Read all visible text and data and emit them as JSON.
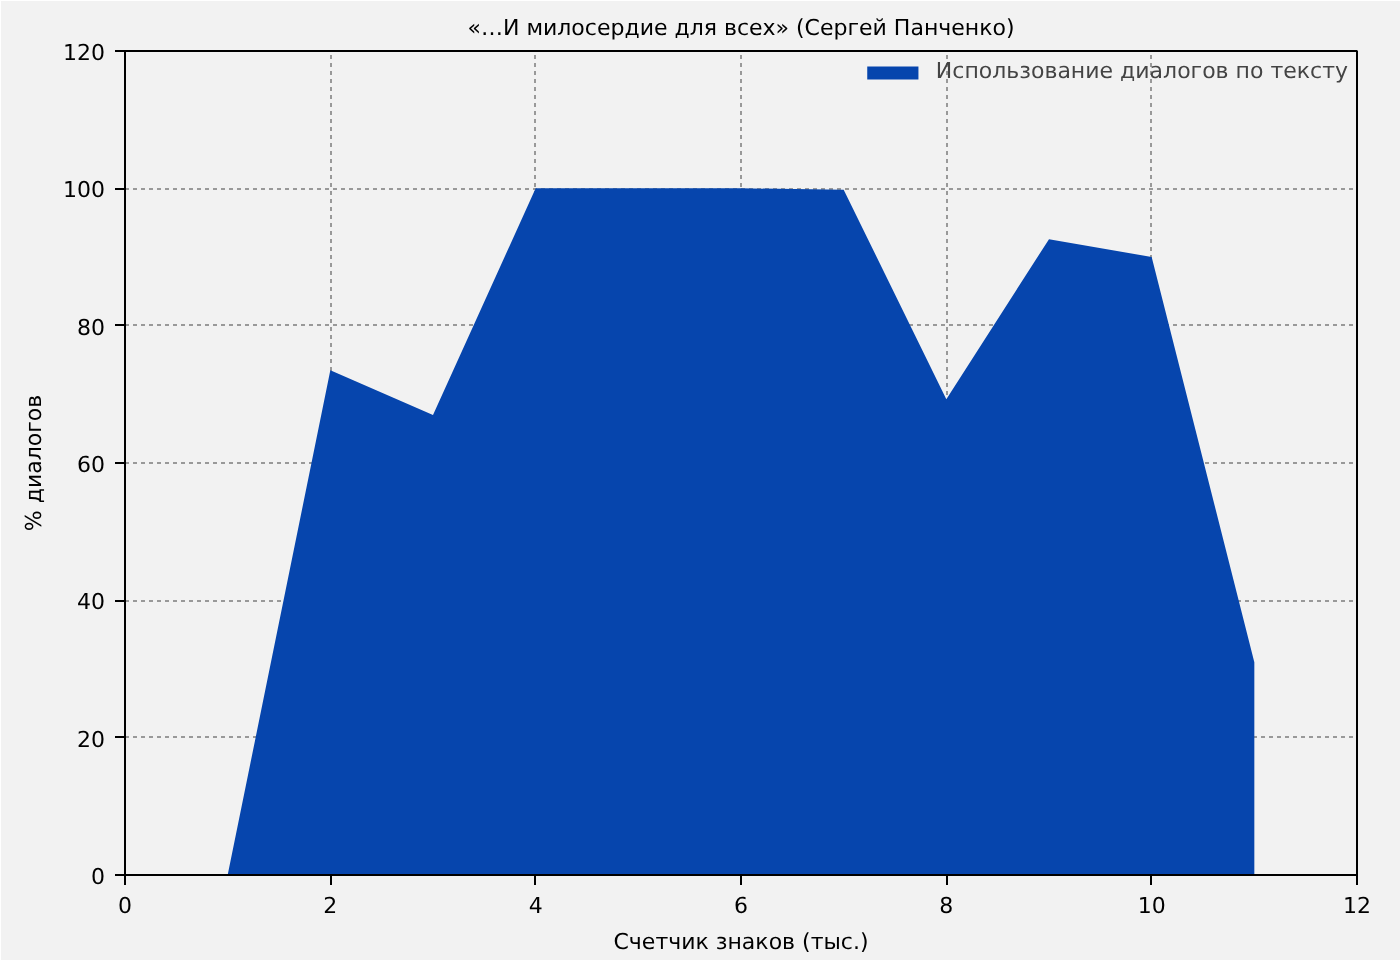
{
  "chart_data": {
    "type": "area",
    "title": "«…И милосердие для всех» (Сергей Панченко)",
    "xlabel": "Счетчик знаков (тыс.)",
    "ylabel": "% диалогов",
    "x": [
      1,
      2,
      3,
      4,
      5,
      6,
      7,
      8,
      9,
      10,
      11
    ],
    "series": [
      {
        "name": "Использование диалогов по тексту",
        "color": "#0645ad",
        "values": [
          0,
          73.5,
          67,
          100,
          100,
          100,
          99.8,
          69.3,
          92.6,
          90,
          31
        ]
      }
    ],
    "xlim": [
      0,
      12
    ],
    "ylim": [
      0,
      120
    ],
    "xticks": [
      0,
      2,
      4,
      6,
      8,
      10,
      12
    ],
    "yticks": [
      0,
      20,
      40,
      60,
      80,
      100,
      120
    ],
    "grid": true,
    "legend": "top right"
  }
}
